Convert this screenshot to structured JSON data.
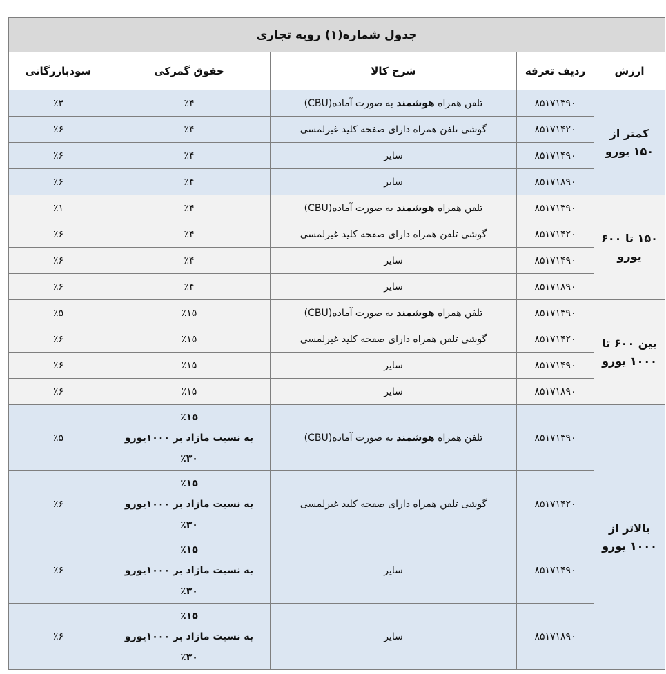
{
  "title": "جدول شماره(۱) رویه تجاری",
  "headers": {
    "value": "ارزش",
    "tariff": "ردیف تعرفه",
    "description": "شرح کالا",
    "customs_duty": "حقوق گمرکی",
    "commercial_profit": "سودبازرگانی"
  },
  "colors": {
    "blue_rows": "#dce6f2",
    "grey_rows": "#f2f2f2",
    "title_bg": "#d9d9d9"
  },
  "descriptions": {
    "smart": {
      "prefix": "تلفن همراه ",
      "bold": "هوشمند",
      "suffix": " به صورت آماده(CBU)"
    },
    "keypad": "گوشی تلفن همراه دارای صفحه کلید غیرلمسی",
    "other": "سایر"
  },
  "groups": [
    {
      "value_label": [
        "کمتر از",
        "۱۵۰ یورو"
      ],
      "rows": [
        {
          "tariff": "۸۵۱۷۱۳۹۰",
          "desc": "smart",
          "duty": "٪۴",
          "profit": "٪۳"
        },
        {
          "tariff": "۸۵۱۷۱۴۲۰",
          "desc": "keypad",
          "duty": "٪۴",
          "profit": "٪۶"
        },
        {
          "tariff": "۸۵۱۷۱۴۹۰",
          "desc": "other",
          "duty": "٪۴",
          "profit": "٪۶"
        },
        {
          "tariff": "۸۵۱۷۱۸۹۰",
          "desc": "other",
          "duty": "٪۴",
          "profit": "٪۶"
        }
      ]
    },
    {
      "value_label": [
        "۱۵۰ تا ۶۰۰",
        "یورو"
      ],
      "rows": [
        {
          "tariff": "۸۵۱۷۱۳۹۰",
          "desc": "smart",
          "duty": "٪۴",
          "profit": "٪۱"
        },
        {
          "tariff": "۸۵۱۷۱۴۲۰",
          "desc": "keypad",
          "duty": "٪۴",
          "profit": "٪۶"
        },
        {
          "tariff": "۸۵۱۷۱۴۹۰",
          "desc": "other",
          "duty": "٪۴",
          "profit": "٪۶"
        },
        {
          "tariff": "۸۵۱۷۱۸۹۰",
          "desc": "other",
          "duty": "٪۴",
          "profit": "٪۶"
        }
      ]
    },
    {
      "value_label": [
        "بین ۶۰۰ تا",
        "۱۰۰۰ یورو"
      ],
      "rows": [
        {
          "tariff": "۸۵۱۷۱۳۹۰",
          "desc": "smart",
          "duty": "٪۱۵",
          "profit": "٪۵"
        },
        {
          "tariff": "۸۵۱۷۱۴۲۰",
          "desc": "keypad",
          "duty": "٪۱۵",
          "profit": "٪۶"
        },
        {
          "tariff": "۸۵۱۷۱۴۹۰",
          "desc": "other",
          "duty": "٪۱۵",
          "profit": "٪۶"
        },
        {
          "tariff": "۸۵۱۷۱۸۹۰",
          "desc": "other",
          "duty": "٪۱۵",
          "profit": "٪۶"
        }
      ]
    },
    {
      "value_label": [
        "بالاتر از",
        "۱۰۰۰ یورو"
      ],
      "rows": [
        {
          "tariff": "۸۵۱۷۱۳۹۰",
          "desc": "smart",
          "duty": "٪۱۵",
          "duty_note": "به نسبت  مازاد بر ۱۰۰۰یورو",
          "duty_extra": "٪۳۰",
          "profit": "٪۵"
        },
        {
          "tariff": "۸۵۱۷۱۴۲۰",
          "desc": "keypad",
          "duty": "٪۱۵",
          "duty_note": "به نسبت  مازاد بر ۱۰۰۰یورو",
          "duty_extra": "٪۳۰",
          "profit": "٪۶"
        },
        {
          "tariff": "۸۵۱۷۱۴۹۰",
          "desc": "other",
          "duty": "٪۱۵",
          "duty_note": "به نسبت  مازاد بر ۱۰۰۰یورو",
          "duty_extra": "٪۳۰",
          "profit": "٪۶"
        },
        {
          "tariff": "۸۵۱۷۱۸۹۰",
          "desc": "other",
          "duty": "٪۱۵",
          "duty_note": "به نسبت  مازاد بر ۱۰۰۰یورو",
          "duty_extra": "٪۳۰",
          "profit": "٪۶"
        }
      ]
    }
  ]
}
